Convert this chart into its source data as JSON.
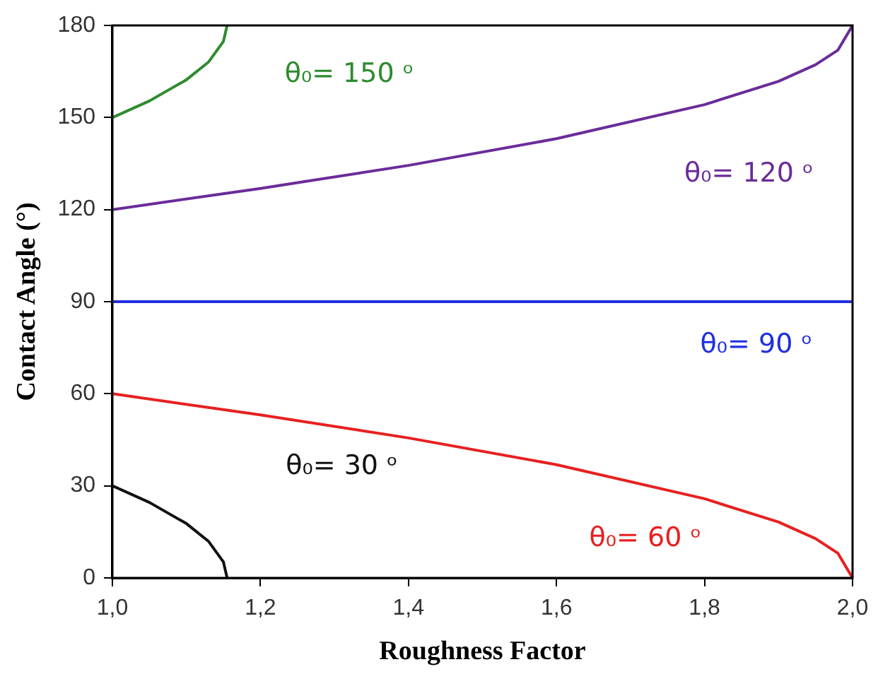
{
  "chart_data": {
    "type": "line",
    "xlabel": "Roughness Factor",
    "ylabel": "Contact Angle (°)",
    "xlim": [
      1,
      2
    ],
    "ylim": [
      0,
      180
    ],
    "xticks": [
      {
        "value": 1,
        "label": "1,0"
      },
      {
        "value": 1.2,
        "label": "1,2"
      },
      {
        "value": 1.4,
        "label": "1,4"
      },
      {
        "value": 1.6,
        "label": "1,6"
      },
      {
        "value": 1.8,
        "label": "1,8"
      },
      {
        "value": 2,
        "label": "2,0"
      }
    ],
    "yticks": [
      0,
      30,
      60,
      90,
      120,
      150,
      180
    ],
    "grid": false,
    "legend": false,
    "marker": "none",
    "line_style": "solid",
    "series": [
      {
        "name": "θ₀= 150 ᵒ",
        "color": "#2e8b2e",
        "x": [
          1,
          1.05,
          1.1,
          1.13,
          1.15,
          1.155
        ],
        "values": [
          150,
          155.4,
          162.3,
          168.1,
          174.8,
          180
        ]
      },
      {
        "name": "θ₀= 120 ᵒ",
        "color": "#6a2c9a",
        "x": [
          1,
          1.2,
          1.4,
          1.6,
          1.8,
          1.9,
          1.95,
          1.98,
          2
        ],
        "values": [
          120,
          126.9,
          134.4,
          143.1,
          154.2,
          161.8,
          167.2,
          171.9,
          180
        ]
      },
      {
        "name": "θ₀= 90 ᵒ",
        "color": "#1f2fe0",
        "x": [
          1,
          2
        ],
        "values": [
          90,
          90
        ]
      },
      {
        "name": "θ₀= 30 ᵒ",
        "color": "#111111",
        "x": [
          1,
          1.05,
          1.1,
          1.13,
          1.15,
          1.155
        ],
        "values": [
          30,
          24.6,
          17.7,
          11.9,
          5.2,
          0
        ]
      },
      {
        "name": "θ₀= 60 ᵒ",
        "color": "#e82020",
        "x": [
          1,
          1.2,
          1.4,
          1.6,
          1.8,
          1.9,
          1.95,
          1.98,
          2
        ],
        "values": [
          60,
          53.1,
          45.6,
          36.9,
          25.8,
          18.2,
          12.8,
          8.1,
          0
        ]
      }
    ]
  }
}
